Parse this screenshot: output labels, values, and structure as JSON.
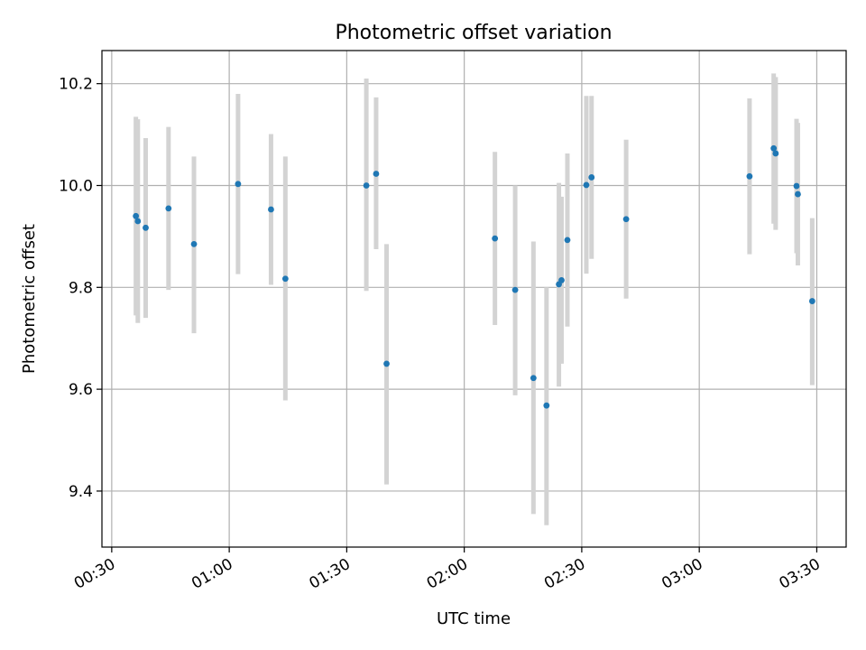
{
  "chart_data": {
    "type": "scatter",
    "title": "Photometric offset variation",
    "xlabel": "UTC time",
    "ylabel": "Photometric offset",
    "x_ticks": [
      "00:30",
      "01:00",
      "01:30",
      "02:00",
      "02:30",
      "03:00",
      "03:30"
    ],
    "x_tick_values": [
      "00:30",
      "01:00",
      "01:30",
      "02:00",
      "02:30",
      "03:00",
      "03:30"
    ],
    "y_ticks": [
      "9.4",
      "9.6",
      "9.8",
      "10.0",
      "10.2"
    ],
    "y_tick_values": [
      9.4,
      9.6,
      9.8,
      10.0,
      10.2
    ],
    "xlim": [
      "00:27:30",
      "03:37:30"
    ],
    "ylim": [
      9.29,
      10.265
    ],
    "grid": true,
    "point_color": "#1f77b4",
    "errorbar_color": "#d3d3d3",
    "series": [
      {
        "points": [
          {
            "x": "00:36:10",
            "y": 9.94,
            "err_low": 9.745,
            "err_high": 10.135
          },
          {
            "x": "00:36:40",
            "y": 9.93,
            "err_low": 9.73,
            "err_high": 10.13
          },
          {
            "x": "00:38:40",
            "y": 9.917,
            "err_low": 9.74,
            "err_high": 10.093
          },
          {
            "x": "00:44:30",
            "y": 9.955,
            "err_low": 9.795,
            "err_high": 10.115
          },
          {
            "x": "00:51:00",
            "y": 9.885,
            "err_low": 9.71,
            "err_high": 10.057
          },
          {
            "x": "01:02:15",
            "y": 10.003,
            "err_low": 9.826,
            "err_high": 10.18
          },
          {
            "x": "01:10:40",
            "y": 9.953,
            "err_low": 9.805,
            "err_high": 10.101
          },
          {
            "x": "01:14:20",
            "y": 9.817,
            "err_low": 9.578,
            "err_high": 10.057
          },
          {
            "x": "01:35:00",
            "y": 10.0,
            "err_low": 9.793,
            "err_high": 10.21
          },
          {
            "x": "01:37:30",
            "y": 10.023,
            "err_low": 9.875,
            "err_high": 10.173
          },
          {
            "x": "01:40:10",
            "y": 9.65,
            "err_low": 9.413,
            "err_high": 9.885
          },
          {
            "x": "02:07:50",
            "y": 9.896,
            "err_low": 9.726,
            "err_high": 10.066
          },
          {
            "x": "02:13:00",
            "y": 9.795,
            "err_low": 9.588,
            "err_high": 10.0
          },
          {
            "x": "02:17:40",
            "y": 9.622,
            "err_low": 9.355,
            "err_high": 9.89
          },
          {
            "x": "02:21:00",
            "y": 9.568,
            "err_low": 9.333,
            "err_high": 9.8
          },
          {
            "x": "02:24:10",
            "y": 9.806,
            "err_low": 9.605,
            "err_high": 10.005
          },
          {
            "x": "02:24:50",
            "y": 9.814,
            "err_low": 9.65,
            "err_high": 9.978
          },
          {
            "x": "02:26:20",
            "y": 9.893,
            "err_low": 9.723,
            "err_high": 10.063
          },
          {
            "x": "02:31:10",
            "y": 10.001,
            "err_low": 9.827,
            "err_high": 10.176
          },
          {
            "x": "02:32:30",
            "y": 10.016,
            "err_low": 9.856,
            "err_high": 10.176
          },
          {
            "x": "02:41:20",
            "y": 9.934,
            "err_low": 9.778,
            "err_high": 10.09
          },
          {
            "x": "03:12:50",
            "y": 10.018,
            "err_low": 9.865,
            "err_high": 10.171
          },
          {
            "x": "03:19:00",
            "y": 10.073,
            "err_low": 9.925,
            "err_high": 10.22
          },
          {
            "x": "03:19:30",
            "y": 10.063,
            "err_low": 9.913,
            "err_high": 10.213
          },
          {
            "x": "03:24:50",
            "y": 9.999,
            "err_low": 9.867,
            "err_high": 10.131
          },
          {
            "x": "03:25:10",
            "y": 9.983,
            "err_low": 9.843,
            "err_high": 10.123
          },
          {
            "x": "03:28:50",
            "y": 9.773,
            "err_low": 9.608,
            "err_high": 9.936
          }
        ]
      }
    ]
  }
}
